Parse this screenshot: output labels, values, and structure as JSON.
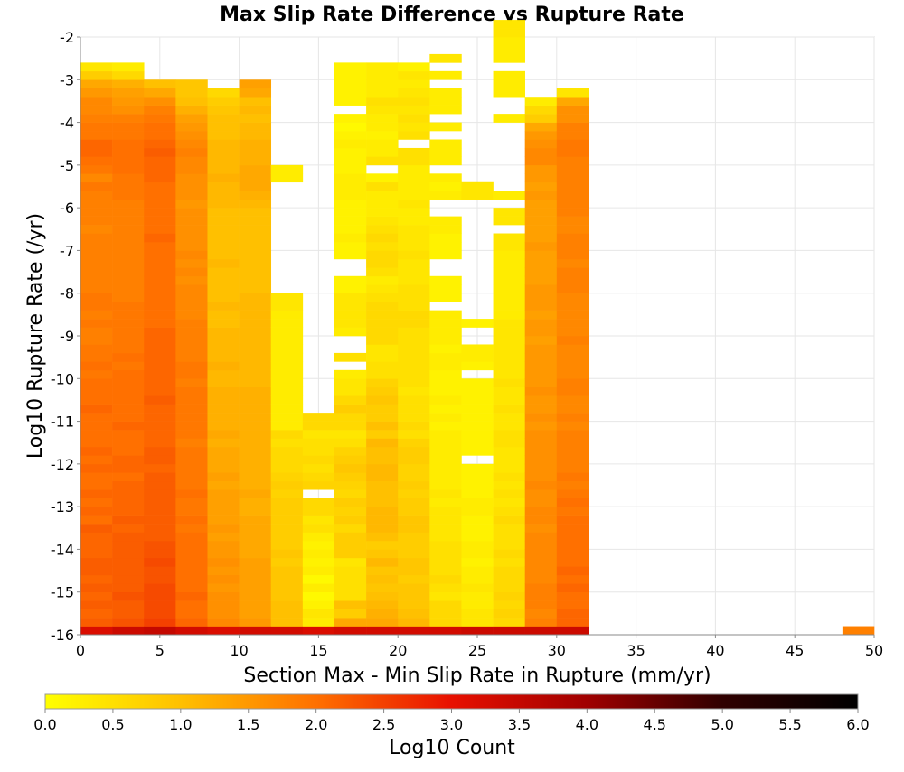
{
  "chart_data": {
    "type": "heatmap",
    "title": "Max Slip Rate Difference vs Rupture Rate",
    "xlabel": "Section Max - Min Slip Rate in Rupture (mm/yr)",
    "ylabel": "Log10 Rupture Rate (/yr)",
    "xlim": [
      0,
      50
    ],
    "ylim": [
      -16,
      -2
    ],
    "x_ticks": [
      0,
      5,
      10,
      15,
      20,
      25,
      30,
      35,
      40,
      45,
      50
    ],
    "y_ticks": [
      -2,
      -3,
      -4,
      -5,
      -6,
      -7,
      -8,
      -9,
      -10,
      -11,
      -12,
      -13,
      -14,
      -15,
      -16
    ],
    "grid": true,
    "bin_width_x": 2,
    "bin_height_y": 0.2,
    "y_start": -16,
    "colorbar": {
      "label": "Log10 Count",
      "range": [
        0,
        6
      ],
      "ticks": [
        "0.0",
        "0.5",
        "1.0",
        "1.5",
        "2.0",
        "2.5",
        "3.0",
        "3.5",
        "4.0",
        "4.5",
        "5.0",
        "5.5",
        "6.0"
      ],
      "colors": [
        "#ffff00",
        "#ffc000",
        "#ff7000",
        "#e81000",
        "#a00000",
        "#300000",
        "#000000"
      ],
      "stops": [
        0.0,
        1.0,
        2.0,
        3.0,
        4.0,
        5.0,
        6.0
      ]
    },
    "columns": [
      {
        "x": 0,
        "start": -16,
        "values": [
          3.2,
          2.2,
          2.1,
          2.2,
          2.1,
          2.2,
          2.1,
          2.2,
          2.2,
          2.1,
          2.1,
          2.1,
          2.2,
          2.0,
          2.1,
          2.0,
          2.1,
          2.0,
          2.0,
          2.1,
          2.0,
          2.1,
          2.0,
          2.0,
          2.0,
          2.0,
          2.1,
          2.0,
          2.0,
          2.0,
          1.9,
          2.0,
          1.9,
          1.9,
          1.8,
          1.8,
          1.9,
          1.8,
          1.9,
          1.9,
          1.8,
          1.8,
          1.8,
          1.8,
          1.8,
          1.8,
          1.8,
          1.7,
          1.8,
          1.8,
          1.8,
          1.8,
          1.9,
          1.7,
          1.9,
          2.0,
          2.1,
          2.1,
          1.9,
          1.9,
          1.8,
          1.7,
          1.7,
          1.5,
          1.3,
          0.8,
          0.4
        ]
      },
      {
        "x": 2,
        "start": -16,
        "values": [
          3.4,
          2.3,
          2.2,
          2.2,
          2.3,
          2.2,
          2.2,
          2.2,
          2.2,
          2.2,
          2.2,
          2.2,
          2.1,
          2.2,
          2.1,
          2.1,
          2.1,
          2.1,
          2.0,
          2.1,
          2.1,
          2.0,
          2.0,
          2.0,
          2.1,
          2.0,
          2.0,
          2.0,
          2.0,
          2.0,
          2.0,
          1.9,
          2.0,
          1.9,
          1.9,
          1.9,
          1.9,
          1.9,
          1.9,
          1.8,
          1.8,
          1.8,
          1.8,
          1.8,
          1.8,
          1.8,
          1.8,
          1.8,
          1.8,
          1.8,
          1.8,
          1.9,
          1.9,
          1.9,
          2.0,
          2.0,
          2.0,
          2.0,
          1.9,
          1.9,
          1.8,
          1.6,
          1.5,
          1.4,
          1.2,
          0.6,
          0.3
        ]
      },
      {
        "x": 4,
        "start": -16,
        "values": [
          3.5,
          2.5,
          2.4,
          2.4,
          2.4,
          2.4,
          2.3,
          2.3,
          2.4,
          2.3,
          2.3,
          2.2,
          2.2,
          2.2,
          2.2,
          2.2,
          2.2,
          2.2,
          2.2,
          2.1,
          2.2,
          2.2,
          2.1,
          2.1,
          2.1,
          2.1,
          2.1,
          2.2,
          2.1,
          2.1,
          2.1,
          2.1,
          2.1,
          2.1,
          2.1,
          2.1,
          2.0,
          2.0,
          2.0,
          2.0,
          2.0,
          2.0,
          2.0,
          2.0,
          2.0,
          2.0,
          2.1,
          2.0,
          2.0,
          2.0,
          2.0,
          2.0,
          2.0,
          2.1,
          2.1,
          2.1,
          2.2,
          2.1,
          2.0,
          2.0,
          1.9,
          1.8,
          1.6,
          1.3,
          1.0
        ]
      },
      {
        "x": 6,
        "start": -16,
        "values": [
          3.3,
          2.1,
          2.0,
          2.0,
          2.1,
          2.0,
          2.0,
          2.0,
          2.0,
          2.0,
          2.0,
          2.0,
          1.9,
          2.0,
          1.9,
          1.9,
          2.0,
          1.9,
          1.9,
          1.9,
          1.9,
          1.9,
          1.8,
          1.9,
          1.9,
          1.9,
          1.9,
          1.9,
          1.9,
          1.8,
          1.9,
          1.9,
          1.8,
          1.8,
          1.8,
          1.8,
          1.8,
          1.7,
          1.7,
          1.7,
          1.7,
          1.6,
          1.7,
          1.6,
          1.7,
          1.6,
          1.6,
          1.6,
          1.6,
          1.6,
          1.5,
          1.6,
          1.6,
          1.6,
          1.7,
          1.7,
          1.8,
          1.7,
          1.6,
          1.5,
          1.4,
          1.2,
          1.0,
          0.9,
          0.9
        ]
      },
      {
        "x": 8,
        "start": -16,
        "values": [
          3.2,
          1.7,
          1.6,
          1.6,
          1.6,
          1.5,
          1.6,
          1.5,
          1.6,
          1.5,
          1.5,
          1.4,
          1.5,
          1.4,
          1.4,
          1.4,
          1.4,
          1.3,
          1.4,
          1.3,
          1.3,
          1.3,
          1.2,
          1.3,
          1.2,
          1.2,
          1.2,
          1.2,
          1.2,
          1.1,
          1.1,
          1.2,
          1.1,
          1.1,
          1.1,
          1.1,
          1.0,
          1.0,
          1.1,
          1.0,
          1.0,
          1.0,
          1.0,
          1.1,
          1.0,
          1.0,
          1.0,
          1.0,
          1.0,
          1.0,
          1.1,
          1.1,
          1.1,
          1.2,
          1.1,
          1.1,
          1.1,
          1.1,
          1.0,
          1.0,
          1.0,
          0.9,
          0.8,
          0.6
        ]
      },
      {
        "x": 10,
        "start": -16,
        "values": [
          3.3,
          1.5,
          1.4,
          1.4,
          1.4,
          1.4,
          1.4,
          1.4,
          1.4,
          1.3,
          1.3,
          1.3,
          1.3,
          1.3,
          1.2,
          1.2,
          1.3,
          1.2,
          1.2,
          1.2,
          1.2,
          1.2,
          1.2,
          1.2,
          1.2,
          1.2,
          1.2,
          1.2,
          1.2,
          1.1,
          1.1,
          1.1,
          1.1,
          1.1,
          1.1,
          1.1,
          1.1,
          1.1,
          1.1,
          1.1,
          1.0,
          1.0,
          1.0,
          1.0,
          1.0,
          1.0,
          1.0,
          1.0,
          1.0,
          1.0,
          1.1,
          1.2,
          1.3,
          1.3,
          1.3,
          1.2,
          1.2,
          1.2,
          1.1,
          1.1,
          1.0,
          1.1,
          1.0,
          1.3,
          1.4
        ]
      },
      {
        "x": 12,
        "start": -16,
        "values": [
          3.3,
          1.0,
          1.0,
          1.0,
          0.9,
          0.9,
          0.9,
          0.9,
          0.8,
          0.9,
          0.8,
          0.8,
          0.8,
          0.8,
          0.8,
          0.8,
          0.7,
          0.8,
          0.7,
          0.6,
          0.6,
          0.6,
          0.5,
          0.6,
          0.3,
          0.3,
          0.3,
          0.3,
          0.3,
          0.3,
          0.3,
          0.3,
          0.3,
          0.3,
          0.3,
          0.3,
          0.3,
          0.3,
          0.4,
          0.4,
          null,
          null,
          null,
          null,
          null,
          null,
          null,
          null,
          null,
          null,
          null,
          null,
          null,
          0.3,
          0.3,
          null,
          null,
          null,
          null,
          null,
          null,
          null,
          null,
          null,
          null,
          null,
          null
        ]
      },
      {
        "x": 14,
        "start": -16,
        "values": [
          3.2,
          0.3,
          0.4,
          0.2,
          0.1,
          0.3,
          0.1,
          0.3,
          0.2,
          0.3,
          0.2,
          0.3,
          0.5,
          0.4,
          0.6,
          0.6,
          null,
          0.7,
          0.6,
          0.5,
          0.6,
          0.5,
          0.5,
          0.4,
          0.6,
          0.6
        ]
      },
      {
        "x": 16,
        "start": -16,
        "values": [
          3.3,
          1.3,
          0.8,
          1.0,
          0.5,
          0.5,
          0.5,
          0.5,
          0.4,
          0.8,
          0.8,
          0.8,
          0.6,
          0.8,
          0.7,
          0.8,
          0.6,
          0.7,
          0.8,
          0.9,
          0.8,
          0.7,
          0.5,
          0.4,
          0.6,
          0.6,
          0.8,
          0.6,
          0.4,
          0.4,
          0.3,
          null,
          0.5,
          null,
          null,
          0.3,
          0.4,
          0.4,
          0.4,
          0.4,
          0.2,
          0.2,
          null,
          null,
          0.2,
          0.2,
          0.3,
          0.2,
          0.2,
          0.2,
          0.2,
          0.3,
          0.3,
          0.3,
          0.2,
          0.2,
          0.2,
          0.3,
          0.2,
          0.1,
          0.2,
          null,
          0.2,
          0.2,
          0.2,
          0.2,
          0.2
        ]
      },
      {
        "x": 18,
        "start": -16,
        "values": [
          3.3,
          1.3,
          1.2,
          1.1,
          1.0,
          0.9,
          1.0,
          0.9,
          1.1,
          0.9,
          0.8,
          1.0,
          1.1,
          1.1,
          1.1,
          1.0,
          1.0,
          1.0,
          1.1,
          1.1,
          1.0,
          1.0,
          1.1,
          0.8,
          1.0,
          0.8,
          0.8,
          0.9,
          0.8,
          0.7,
          0.5,
          0.5,
          0.4,
          0.4,
          0.6,
          0.6,
          0.6,
          0.6,
          0.6,
          0.5,
          0.4,
          0.3,
          0.5,
          0.6,
          0.6,
          0.5,
          0.6,
          0.5,
          0.4,
          0.3,
          0.3,
          0.3,
          0.5,
          0.2,
          null,
          0.5,
          0.3,
          0.3,
          0.2,
          0.3,
          0.3,
          0.4,
          0.5,
          0.3,
          0.3,
          0.3,
          0.3
        ]
      },
      {
        "x": 20,
        "start": -16,
        "values": [
          3.3,
          1.1,
          1.0,
          0.9,
          0.9,
          0.9,
          0.8,
          0.9,
          0.9,
          0.8,
          0.8,
          0.8,
          0.9,
          0.9,
          0.8,
          0.8,
          0.7,
          0.8,
          0.7,
          0.7,
          0.8,
          0.8,
          0.7,
          0.5,
          0.6,
          0.5,
          0.5,
          0.5,
          0.4,
          0.5,
          0.5,
          0.5,
          0.5,
          0.5,
          0.5,
          0.5,
          0.6,
          0.6,
          0.5,
          0.5,
          0.5,
          0.4,
          0.4,
          0.4,
          0.5,
          0.4,
          0.4,
          0.4,
          0.3,
          0.3,
          0.4,
          0.3,
          0.3,
          0.3,
          0.3,
          0.5,
          0.5,
          null,
          0.5,
          0.4,
          0.5,
          0.4,
          0.5,
          0.4,
          0.3,
          0.4,
          0.2
        ]
      },
      {
        "x": 22,
        "start": -16,
        "values": [
          3.3,
          0.6,
          0.6,
          0.6,
          0.4,
          0.5,
          0.6,
          0.5,
          0.5,
          0.5,
          0.5,
          0.4,
          0.4,
          0.4,
          0.4,
          0.3,
          0.4,
          0.3,
          0.3,
          0.3,
          0.3,
          0.3,
          0.3,
          0.3,
          0.2,
          0.3,
          0.2,
          0.3,
          0.2,
          0.2,
          0.2,
          0.3,
          0.3,
          0.2,
          0.3,
          0.3,
          0.3,
          0.3,
          null,
          0.2,
          0.2,
          0.2,
          null,
          null,
          0.2,
          0.2,
          0.2,
          0.3,
          0.3,
          null,
          null,
          0.3,
          0.2,
          0.3,
          null,
          0.3,
          0.3,
          0.3,
          null,
          0.3,
          null,
          0.3,
          0.3,
          0.3,
          null,
          0.3,
          null,
          0.4
        ]
      },
      {
        "x": 24,
        "start": -16,
        "values": [
          3.4,
          0.4,
          0.4,
          0.3,
          0.3,
          0.4,
          0.3,
          0.3,
          0.2,
          0.3,
          0.3,
          0.2,
          0.2,
          0.2,
          0.3,
          0.3,
          0.2,
          0.2,
          0.2,
          0.2,
          null,
          0.2,
          0.2,
          0.2,
          0.2,
          0.2,
          0.2,
          0.2,
          0.2,
          0.2,
          null,
          0.2,
          0.3,
          0.3,
          null,
          null,
          0.2,
          null,
          null,
          null,
          null,
          null,
          null,
          null,
          null,
          null,
          null,
          null,
          null,
          null,
          null,
          0.4,
          0.4
        ]
      },
      {
        "x": 26,
        "start": -16,
        "values": [
          3.4,
          0.6,
          0.7,
          0.6,
          0.7,
          0.6,
          0.6,
          0.6,
          0.5,
          0.6,
          0.5,
          0.5,
          0.5,
          0.6,
          0.5,
          0.4,
          0.5,
          0.4,
          0.5,
          0.4,
          0.4,
          0.4,
          0.5,
          0.5,
          0.4,
          0.4,
          0.5,
          0.4,
          0.4,
          0.5,
          0.4,
          0.4,
          0.4,
          0.4,
          0.4,
          0.4,
          0.4,
          0.3,
          0.3,
          0.3,
          0.3,
          0.3,
          0.3,
          0.3,
          0.3,
          0.4,
          0.4,
          null,
          0.4,
          0.4,
          null,
          0.3,
          null,
          null,
          null,
          null,
          null,
          null,
          null,
          null,
          0.3,
          null,
          null,
          0.3,
          0.3,
          0.3,
          null,
          0.3,
          0.3,
          0.3,
          0.4,
          0.4
        ]
      },
      {
        "x": 28,
        "start": -16,
        "values": [
          3.4,
          1.8,
          1.7,
          1.8,
          1.8,
          1.8,
          1.7,
          1.7,
          1.7,
          1.7,
          1.7,
          1.7,
          1.6,
          1.7,
          1.7,
          1.6,
          1.6,
          1.7,
          1.6,
          1.6,
          1.6,
          1.6,
          1.6,
          1.6,
          1.5,
          1.6,
          1.5,
          1.5,
          1.6,
          1.5,
          1.5,
          1.5,
          1.5,
          1.5,
          1.4,
          1.5,
          1.5,
          1.4,
          1.5,
          1.5,
          1.5,
          1.4,
          1.4,
          1.4,
          1.4,
          1.5,
          1.4,
          1.4,
          1.4,
          1.4,
          1.4,
          1.5,
          1.4,
          1.5,
          1.5,
          1.7,
          1.7,
          1.6,
          1.5,
          1.3,
          0.8,
          0.6,
          0.3
        ]
      },
      {
        "x": 30,
        "start": -16,
        "values": [
          3.4,
          2.1,
          2.1,
          2.0,
          2.0,
          2.1,
          2.0,
          2.1,
          2.0,
          2.0,
          2.0,
          2.0,
          2.0,
          2.0,
          1.9,
          2.0,
          1.9,
          1.8,
          1.9,
          1.8,
          1.8,
          1.8,
          1.8,
          1.8,
          1.7,
          1.8,
          1.7,
          1.7,
          1.8,
          1.8,
          1.7,
          1.7,
          1.7,
          1.7,
          1.8,
          1.7,
          1.7,
          1.7,
          1.7,
          1.7,
          1.8,
          1.8,
          1.8,
          1.7,
          1.8,
          1.8,
          1.8,
          1.7,
          1.7,
          1.8,
          1.8,
          1.8,
          1.8,
          1.8,
          1.8,
          1.8,
          1.9,
          1.9,
          1.8,
          1.8,
          1.6,
          1.6,
          1.3,
          0.4
        ]
      },
      {
        "x": 48,
        "start": -16,
        "values": [
          1.8
        ]
      }
    ]
  }
}
